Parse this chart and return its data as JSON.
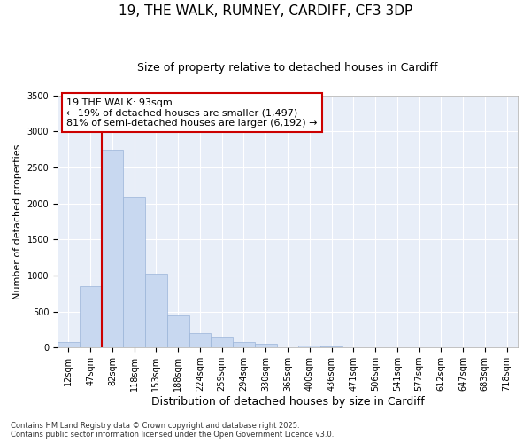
{
  "title_line1": "19, THE WALK, RUMNEY, CARDIFF, CF3 3DP",
  "title_line2": "Size of property relative to detached houses in Cardiff",
  "xlabel": "Distribution of detached houses by size in Cardiff",
  "ylabel": "Number of detached properties",
  "categories": [
    "12sqm",
    "47sqm",
    "82sqm",
    "118sqm",
    "153sqm",
    "188sqm",
    "224sqm",
    "259sqm",
    "294sqm",
    "330sqm",
    "365sqm",
    "400sqm",
    "436sqm",
    "471sqm",
    "506sqm",
    "541sqm",
    "577sqm",
    "612sqm",
    "647sqm",
    "683sqm",
    "718sqm"
  ],
  "values": [
    75,
    850,
    2750,
    2100,
    1020,
    450,
    200,
    145,
    75,
    55,
    0,
    30,
    15,
    5,
    3,
    2,
    1,
    0,
    0,
    0,
    0
  ],
  "bar_color": "#c8d8f0",
  "bar_edge_color": "#9ab4d8",
  "vline_color": "#cc0000",
  "vline_pos": 1.5,
  "ylim": [
    0,
    3500
  ],
  "yticks": [
    0,
    500,
    1000,
    1500,
    2000,
    2500,
    3000,
    3500
  ],
  "annotation_text": "19 THE WALK: 93sqm\n← 19% of detached houses are smaller (1,497)\n81% of semi-detached houses are larger (6,192) →",
  "footer_line1": "Contains HM Land Registry data © Crown copyright and database right 2025.",
  "footer_line2": "Contains public sector information licensed under the Open Government Licence v3.0.",
  "plot_bg_color": "#e8eef8",
  "fig_bg_color": "#ffffff",
  "grid_color": "#ffffff",
  "title1_fontsize": 11,
  "title2_fontsize": 9,
  "xlabel_fontsize": 9,
  "ylabel_fontsize": 8,
  "tick_fontsize": 7,
  "annot_fontsize": 8,
  "footer_fontsize": 6
}
